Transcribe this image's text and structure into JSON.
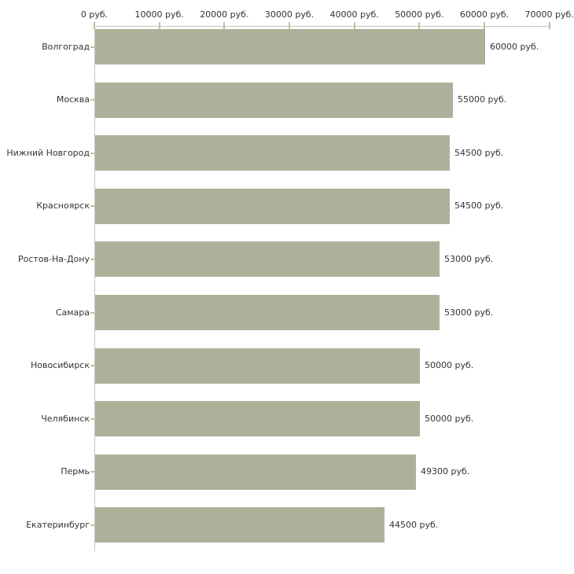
{
  "chart_data": {
    "type": "bar",
    "orientation": "horizontal",
    "title": "",
    "xlabel": "",
    "ylabel": "",
    "grid": false,
    "legend": null,
    "categories": [
      "Волгоград",
      "Москва",
      "Нижний Новгород",
      "Красноярск",
      "Ростов-На-Дону",
      "Самара",
      "Новосибирск",
      "Челябинск",
      "Пермь",
      "Екатеринбург"
    ],
    "values": [
      60000,
      55000,
      54500,
      54500,
      53000,
      53000,
      50000,
      50000,
      49300,
      44500
    ],
    "value_labels": [
      "60000 руб.",
      "55000 руб.",
      "54500 руб.",
      "54500 руб.",
      "53000 руб.",
      "53000 руб.",
      "50000 руб.",
      "50000 руб.",
      "49300 руб.",
      "44500 руб."
    ],
    "x_tick_values": [
      0,
      10000,
      20000,
      30000,
      40000,
      50000,
      60000,
      70000
    ],
    "x_tick_labels": [
      "0 руб.",
      "10000 руб.",
      "20000 руб.",
      "30000 руб.",
      "40000 руб.",
      "50000 руб.",
      "60000 руб.",
      "70000 руб."
    ],
    "xlim": [
      0,
      70000
    ],
    "colors": {
      "bar": "#acb29a",
      "axis": "#c6c6c6",
      "tick": "#c2c29c",
      "text": "#333333",
      "background": "#ffffff"
    }
  }
}
